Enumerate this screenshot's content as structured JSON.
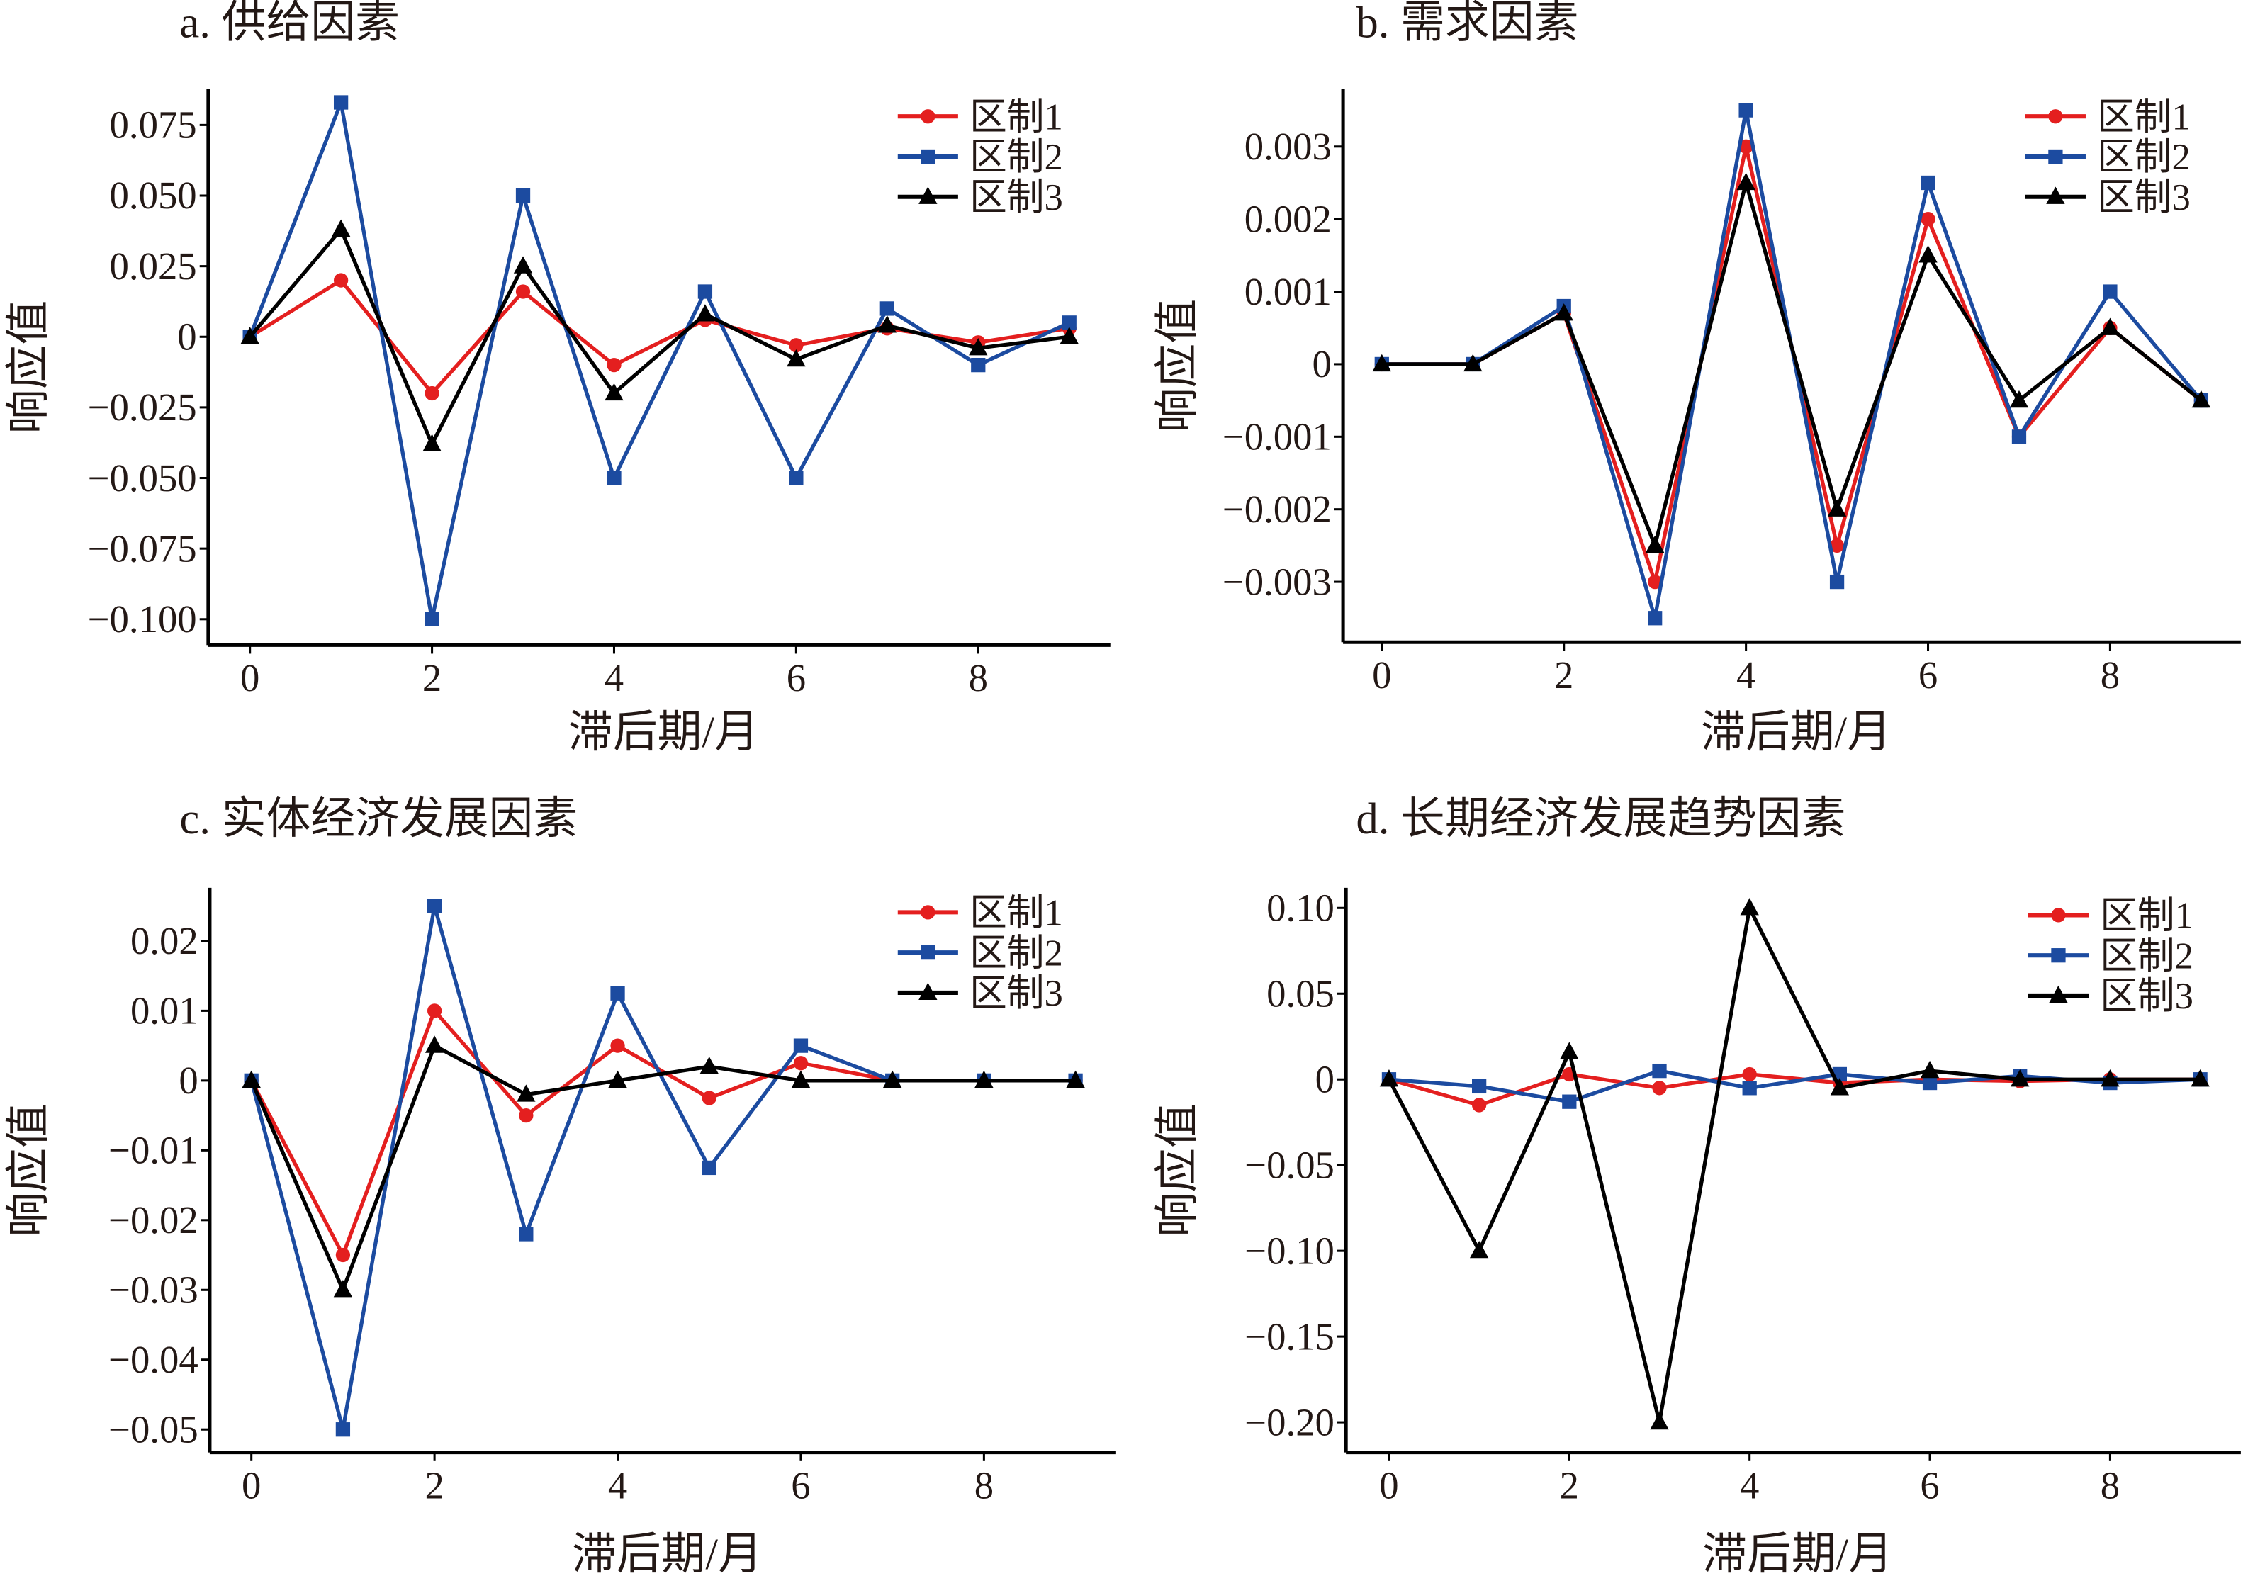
{
  "chart_data": [
    {
      "type": "line",
      "title": "a. 供给因素",
      "xlabel": "滞后期/月",
      "ylabel": "响应值",
      "x": [
        0,
        1,
        2,
        3,
        4,
        5,
        6,
        7,
        8,
        9
      ],
      "xticks": [
        "0",
        "2",
        "4",
        "6",
        "8"
      ],
      "xtick_values": [
        0,
        2,
        4,
        6,
        8
      ],
      "yticks": [
        "0.075",
        "0.050",
        "0.025",
        "0",
        "−0.025",
        "−0.050",
        "−0.075",
        "−0.100"
      ],
      "ytick_values": [
        0.075,
        0.05,
        0.025,
        0,
        -0.025,
        -0.05,
        -0.075,
        -0.1
      ],
      "legend_position": "top-right",
      "series": [
        {
          "name": "区制1",
          "color": "#e41f1f",
          "marker": "circle",
          "values": [
            0,
            0.02,
            -0.02,
            0.016,
            -0.01,
            0.006,
            -0.003,
            0.003,
            -0.002,
            0.003
          ]
        },
        {
          "name": "区制2",
          "color": "#1c4ba0",
          "marker": "square",
          "values": [
            0,
            0.083,
            -0.1,
            0.05,
            -0.05,
            0.016,
            -0.05,
            0.01,
            -0.01,
            0.005
          ]
        },
        {
          "name": "区制3",
          "color": "#000000",
          "marker": "triangle",
          "values": [
            0,
            0.038,
            -0.038,
            0.025,
            -0.02,
            0.008,
            -0.008,
            0.004,
            -0.004,
            0
          ]
        }
      ]
    },
    {
      "type": "line",
      "title": "b. 需求因素",
      "xlabel": "滞后期/月",
      "ylabel": "响应值",
      "x": [
        0,
        1,
        2,
        3,
        4,
        5,
        6,
        7,
        8,
        9
      ],
      "xticks": [
        "0",
        "2",
        "4",
        "6",
        "8"
      ],
      "xtick_values": [
        0,
        2,
        4,
        6,
        8
      ],
      "yticks": [
        "0.003",
        "0.002",
        "0.001",
        "0",
        "−0.001",
        "−0.002",
        "−0.003"
      ],
      "ytick_values": [
        0.003,
        0.002,
        0.001,
        0,
        -0.001,
        -0.002,
        -0.003
      ],
      "legend_position": "top-right",
      "series": [
        {
          "name": "区制1",
          "color": "#e41f1f",
          "marker": "circle",
          "values": [
            0,
            0,
            0.0007,
            -0.003,
            0.003,
            -0.0025,
            0.002,
            -0.001,
            0.0005,
            -0.0005
          ]
        },
        {
          "name": "区制2",
          "color": "#1c4ba0",
          "marker": "square",
          "values": [
            0,
            0,
            0.0008,
            -0.0035,
            0.0035,
            -0.003,
            0.0025,
            -0.001,
            0.001,
            -0.0005
          ]
        },
        {
          "name": "区制3",
          "color": "#000000",
          "marker": "triangle",
          "values": [
            0,
            0,
            0.0007,
            -0.0025,
            0.0025,
            -0.002,
            0.0015,
            -0.0005,
            0.0005,
            -0.0005
          ]
        }
      ]
    },
    {
      "type": "line",
      "title": "c. 实体经济发展因素",
      "xlabel": "滞后期/月",
      "ylabel": "响应值",
      "x": [
        0,
        1,
        2,
        3,
        4,
        5,
        6,
        7,
        8,
        9
      ],
      "xticks": [
        "0",
        "2",
        "4",
        "6",
        "8"
      ],
      "xtick_values": [
        0,
        2,
        4,
        6,
        8
      ],
      "yticks": [
        "0.02",
        "0.01",
        "0",
        "−0.01",
        "−0.02",
        "−0.03",
        "−0.04",
        "−0.05"
      ],
      "ytick_values": [
        0.02,
        0.01,
        0,
        -0.01,
        -0.02,
        -0.03,
        -0.04,
        -0.05
      ],
      "legend_position": "top-right",
      "series": [
        {
          "name": "区制1",
          "color": "#e41f1f",
          "marker": "circle",
          "values": [
            0,
            -0.025,
            0.01,
            -0.005,
            0.005,
            -0.0025,
            0.0025,
            0,
            0,
            0
          ]
        },
        {
          "name": "区制2",
          "color": "#1c4ba0",
          "marker": "square",
          "values": [
            0,
            -0.05,
            0.025,
            -0.022,
            0.0125,
            -0.0125,
            0.005,
            0,
            0,
            0
          ]
        },
        {
          "name": "区制3",
          "color": "#000000",
          "marker": "triangle",
          "values": [
            0,
            -0.03,
            0.005,
            -0.002,
            0,
            0.002,
            0,
            0,
            0,
            0
          ]
        }
      ]
    },
    {
      "type": "line",
      "title": "d. 长期经济发展趋势因素",
      "xlabel": "滞后期/月",
      "ylabel": "响应值",
      "x": [
        0,
        1,
        2,
        3,
        4,
        5,
        6,
        7,
        8,
        9
      ],
      "xticks": [
        "0",
        "2",
        "4",
        "6",
        "8"
      ],
      "xtick_values": [
        0,
        2,
        4,
        6,
        8
      ],
      "yticks": [
        "0.10",
        "0.05",
        "0",
        "−0.05",
        "−0.10",
        "−0.15",
        "−0.20"
      ],
      "ytick_values": [
        0.1,
        0.05,
        0,
        -0.05,
        -0.1,
        -0.15,
        -0.2
      ],
      "legend_position": "top-right",
      "series": [
        {
          "name": "区制1",
          "color": "#e41f1f",
          "marker": "circle",
          "values": [
            0,
            -0.015,
            0.003,
            -0.005,
            0.003,
            -0.002,
            0,
            -0.001,
            0,
            0
          ]
        },
        {
          "name": "区制2",
          "color": "#1c4ba0",
          "marker": "square",
          "values": [
            0,
            -0.004,
            -0.013,
            0.005,
            -0.005,
            0.003,
            -0.002,
            0.002,
            -0.002,
            0
          ]
        },
        {
          "name": "区制3",
          "color": "#000000",
          "marker": "triangle",
          "values": [
            0,
            -0.1,
            0.016,
            -0.2,
            0.1,
            -0.005,
            0.005,
            0,
            0,
            0
          ]
        }
      ]
    }
  ]
}
